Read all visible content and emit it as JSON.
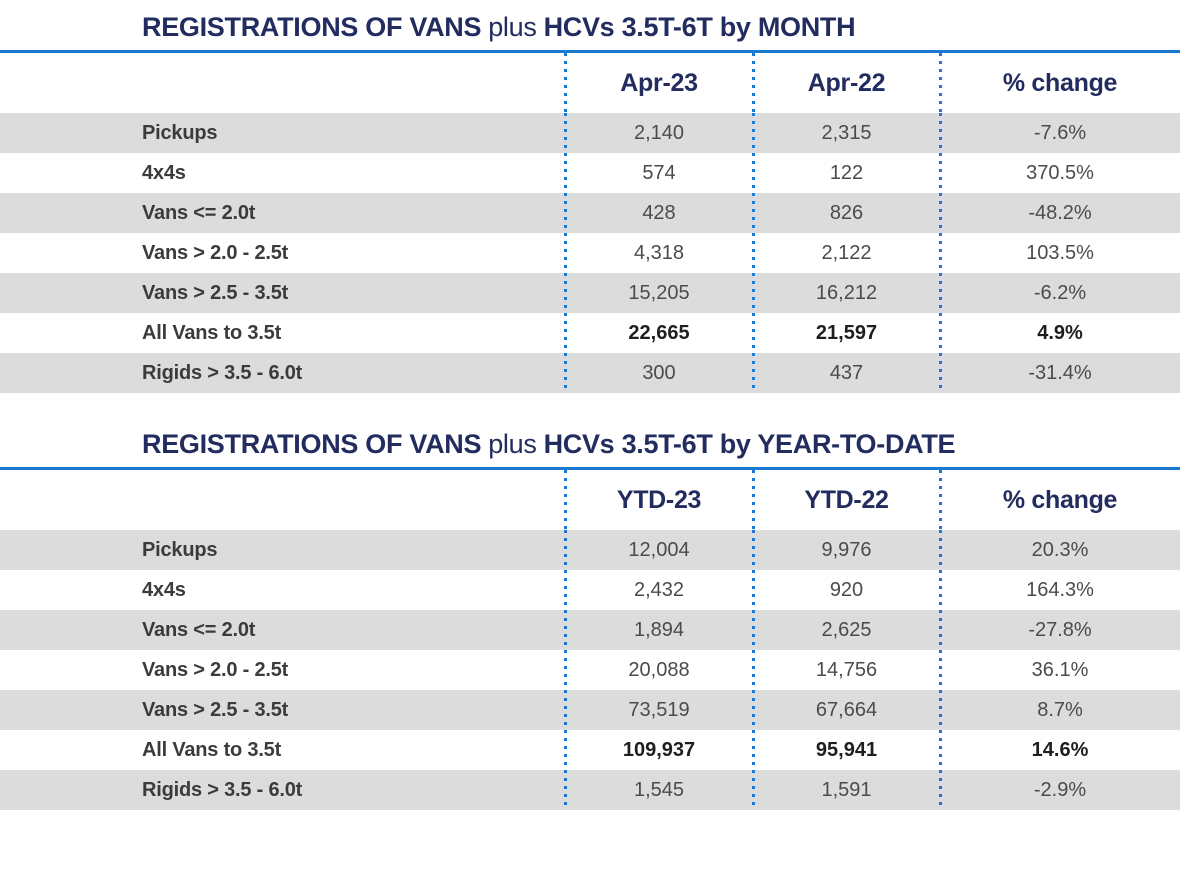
{
  "colors": {
    "navy_heading": "#232c5f",
    "rule_blue": "#1b78d2",
    "dotted_line_blue": "#1b78d8",
    "row_shade_gray": "#dcdcdc",
    "label_text": "#3b3b3b",
    "value_text": "#4b4b4b",
    "total_text": "#1e1e1e"
  },
  "tables": [
    {
      "title": {
        "part1": "REGISTRATIONS OF VANS",
        "part2": "plus",
        "part3": "HCVs 3.5T-6T by MONTH"
      },
      "columns": [
        "Apr-23",
        "Apr-22",
        "% change"
      ],
      "rows": [
        {
          "label": "Pickups",
          "col1": "2,140",
          "col2": "2,315",
          "change": "-7.6%",
          "emphasis": false
        },
        {
          "label": "4x4s",
          "col1": "574",
          "col2": "122",
          "change": "370.5%",
          "emphasis": false
        },
        {
          "label": "Vans <= 2.0t",
          "col1": "428",
          "col2": "826",
          "change": "-48.2%",
          "emphasis": false
        },
        {
          "label": "Vans > 2.0 - 2.5t",
          "col1": "4,318",
          "col2": "2,122",
          "change": "103.5%",
          "emphasis": false
        },
        {
          "label": "Vans > 2.5 - 3.5t",
          "col1": "15,205",
          "col2": "16,212",
          "change": "-6.2%",
          "emphasis": false
        },
        {
          "label": "All Vans to 3.5t",
          "col1": "22,665",
          "col2": "21,597",
          "change": "4.9%",
          "emphasis": true
        },
        {
          "label": "Rigids > 3.5 - 6.0t",
          "col1": "300",
          "col2": "437",
          "change": "-31.4%",
          "emphasis": false
        }
      ]
    },
    {
      "title": {
        "part1": "REGISTRATIONS OF VANS",
        "part2": "plus",
        "part3": "HCVs 3.5T-6T by YEAR-TO-DATE"
      },
      "columns": [
        "YTD-23",
        "YTD-22",
        "% change"
      ],
      "rows": [
        {
          "label": "Pickups",
          "col1": "12,004",
          "col2": "9,976",
          "change": "20.3%",
          "emphasis": false
        },
        {
          "label": "4x4s",
          "col1": "2,432",
          "col2": "920",
          "change": "164.3%",
          "emphasis": false
        },
        {
          "label": "Vans <= 2.0t",
          "col1": "1,894",
          "col2": "2,625",
          "change": "-27.8%",
          "emphasis": false
        },
        {
          "label": "Vans > 2.0 - 2.5t",
          "col1": "20,088",
          "col2": "14,756",
          "change": "36.1%",
          "emphasis": false
        },
        {
          "label": "Vans > 2.5 - 3.5t",
          "col1": "73,519",
          "col2": "67,664",
          "change": "8.7%",
          "emphasis": false
        },
        {
          "label": "All Vans to 3.5t",
          "col1": "109,937",
          "col2": "95,941",
          "change": "14.6%",
          "emphasis": true
        },
        {
          "label": "Rigids > 3.5 - 6.0t",
          "col1": "1,545",
          "col2": "1,591",
          "change": "-2.9%",
          "emphasis": false
        }
      ]
    }
  ]
}
